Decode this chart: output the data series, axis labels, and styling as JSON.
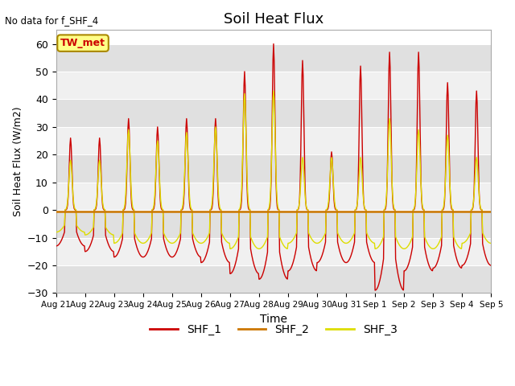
{
  "title": "Soil Heat Flux",
  "xlabel": "Time",
  "ylabel": "Soil Heat Flux (W/m2)",
  "note": "No data for f_SHF_4",
  "tw_met_label": "TW_met",
  "ylim": [
    -30,
    65
  ],
  "yticks": [
    -30,
    -20,
    -10,
    0,
    10,
    20,
    30,
    40,
    50,
    60
  ],
  "legend_entries": [
    "SHF_1",
    "SHF_2",
    "SHF_3"
  ],
  "colors": {
    "SHF_1": "#cc0000",
    "SHF_2": "#cc7700",
    "SHF_3": "#dddd00",
    "bg_dark": "#e0e0e0",
    "bg_light": "#f0f0f0"
  },
  "n_days": 15,
  "shf1_peaks": [
    26,
    26,
    33,
    30,
    33,
    33,
    50,
    60,
    54,
    21,
    52,
    57,
    57,
    46,
    43
  ],
  "shf1_troughs": [
    -13,
    -15,
    -17,
    -17,
    -17,
    -19,
    -23,
    -25,
    -22,
    -19,
    -19,
    -29,
    -22,
    -21,
    -20
  ],
  "shf3_peaks": [
    18,
    18,
    29,
    25,
    28,
    30,
    42,
    43,
    19,
    19,
    19,
    33,
    29,
    27,
    19
  ],
  "shf3_troughs": [
    -8,
    -9,
    -12,
    -12,
    -12,
    -12,
    -14,
    -14,
    -12,
    -12,
    -12,
    -14,
    -14,
    -14,
    -12
  ]
}
